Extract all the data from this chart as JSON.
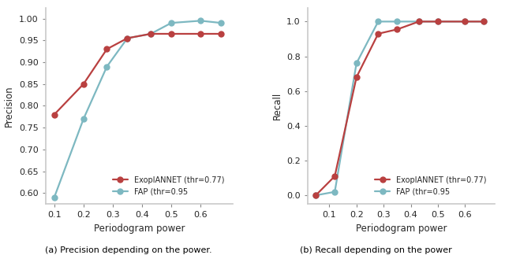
{
  "precision": {
    "exoplannet_x": [
      0.1,
      0.2,
      0.28,
      0.35,
      0.43,
      0.5,
      0.6,
      0.67
    ],
    "exoplannet_y": [
      0.78,
      0.85,
      0.93,
      0.955,
      0.965,
      0.965,
      0.965,
      0.965
    ],
    "fap_x": [
      0.1,
      0.2,
      0.28,
      0.35,
      0.43,
      0.5,
      0.6,
      0.67
    ],
    "fap_y": [
      0.59,
      0.77,
      0.89,
      0.955,
      0.965,
      0.99,
      0.995,
      0.99
    ],
    "xlabel": "Periodogram power",
    "ylabel": "Precision",
    "xlim": [
      0.07,
      0.71
    ],
    "ylim": [
      0.575,
      1.025
    ],
    "xticks": [
      0.1,
      0.2,
      0.3,
      0.4,
      0.5,
      0.6
    ],
    "yticks": [
      0.6,
      0.65,
      0.7,
      0.75,
      0.8,
      0.85,
      0.9,
      0.95,
      1.0
    ],
    "caption": "(a) Precision depending on the power.",
    "legend_loc": "lower right"
  },
  "recall": {
    "exoplannet_x": [
      0.05,
      0.12,
      0.2,
      0.28,
      0.35,
      0.43,
      0.5,
      0.6,
      0.67
    ],
    "exoplannet_y": [
      0.0,
      0.11,
      0.68,
      0.93,
      0.955,
      1.0,
      1.0,
      1.0,
      1.0
    ],
    "fap_x": [
      0.05,
      0.12,
      0.2,
      0.28,
      0.35,
      0.43,
      0.5,
      0.6,
      0.67
    ],
    "fap_y": [
      0.0,
      0.02,
      0.76,
      1.0,
      1.0,
      1.0,
      1.0,
      1.0,
      1.0
    ],
    "xlabel": "Periodogram power",
    "ylabel": "Recall",
    "xlim": [
      0.02,
      0.71
    ],
    "ylim": [
      -0.05,
      1.08
    ],
    "xticks": [
      0.1,
      0.2,
      0.3,
      0.4,
      0.5,
      0.6
    ],
    "yticks": [
      0.0,
      0.2,
      0.4,
      0.6,
      0.8,
      1.0
    ],
    "caption": "(b) Recall depending on the power",
    "legend_loc": "lower right"
  },
  "exoplannet_label": "ExoplANNET (thr=0.77)",
  "fap_label": "FAP (thr=0.95",
  "exoplannet_color": "#b94040",
  "fap_color": "#7db8c1",
  "marker": "o",
  "markersize": 5,
  "linewidth": 1.6,
  "tick_fontsize": 8,
  "label_fontsize": 8.5,
  "legend_fontsize": 7,
  "caption_fontsize": 8
}
